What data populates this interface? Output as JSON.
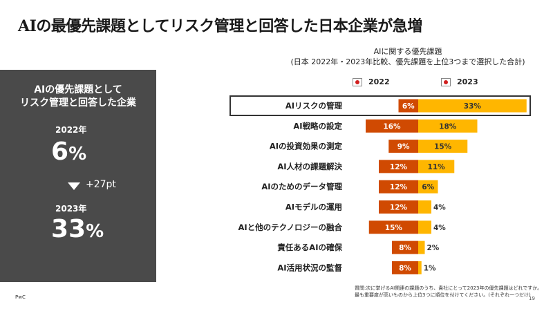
{
  "page": {
    "title": "AIの最優先課題としてリスク管理と回答した日本企業が急増",
    "brand": "PwC",
    "page_number": "19",
    "footnote_line1": "質問:次に挙げるAI関連の課題のうち、貴社にとって2023年の優先課題はどれですか。",
    "footnote_line2": "最も重要度が高いものから上位3つに順位を付けてください。(それぞれ一つだけ)"
  },
  "sidebar": {
    "heading_line1": "AIの優先課題として",
    "heading_line2": "リスク管理と回答した企業",
    "year_a": "2022年",
    "value_a": "6",
    "year_b": "2023年",
    "value_b": "33",
    "pct": "%",
    "diff": "+27pt"
  },
  "chart_data": {
    "type": "bar",
    "title": "AIに関する優先課題",
    "subtitle": "(日本 2022年・2023年比較、優先課題を上位3つまで選択した合計)",
    "categories": [
      "AIリスクの管理",
      "AI戦略の設定",
      "AIの投資効果の測定",
      "AI人材の課題解決",
      "AIのためのデータ管理",
      "AIモデルの運用",
      "AIと他のテクノロジーの融合",
      "責任あるAIの確保",
      "AI活用状況の監督"
    ],
    "series": [
      {
        "name": "2022",
        "values": [
          6,
          16,
          9,
          12,
          12,
          12,
          15,
          8,
          8
        ]
      },
      {
        "name": "2023",
        "values": [
          33,
          18,
          15,
          11,
          6,
          4,
          4,
          2,
          1
        ]
      }
    ],
    "layout": "diverging-butterfly",
    "legend_position": "top",
    "grid": false,
    "highlighted_category": "AIリスクの管理",
    "colors": {
      "2022": "#d04a02",
      "2023": "#ffb600"
    },
    "value_label_suffix": "%"
  }
}
